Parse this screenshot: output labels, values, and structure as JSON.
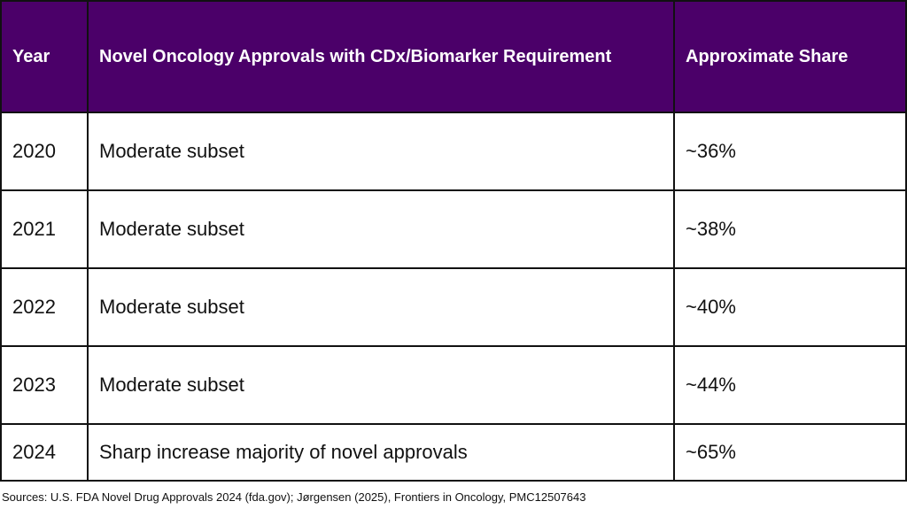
{
  "table": {
    "header": [
      "Year",
      "Novel Oncology Approvals with CDx/Biomarker Requirement",
      "Approximate Share"
    ],
    "rows": [
      [
        "2020",
        "Moderate subset",
        "~36%"
      ],
      [
        "2021",
        "Moderate subset",
        "~38%"
      ],
      [
        "2022",
        "Moderate subset",
        "~40%"
      ],
      [
        "2023",
        "Moderate subset",
        "~44%"
      ],
      [
        "2024",
        "Sharp increase majority of novel approvals",
        "~65%"
      ]
    ]
  },
  "footer": {
    "source": "Sources: U.S. FDA Novel Drug Approvals 2024 (fda.gov); Jørgensen (2025), Frontiers in Oncology, PMC12507643"
  }
}
